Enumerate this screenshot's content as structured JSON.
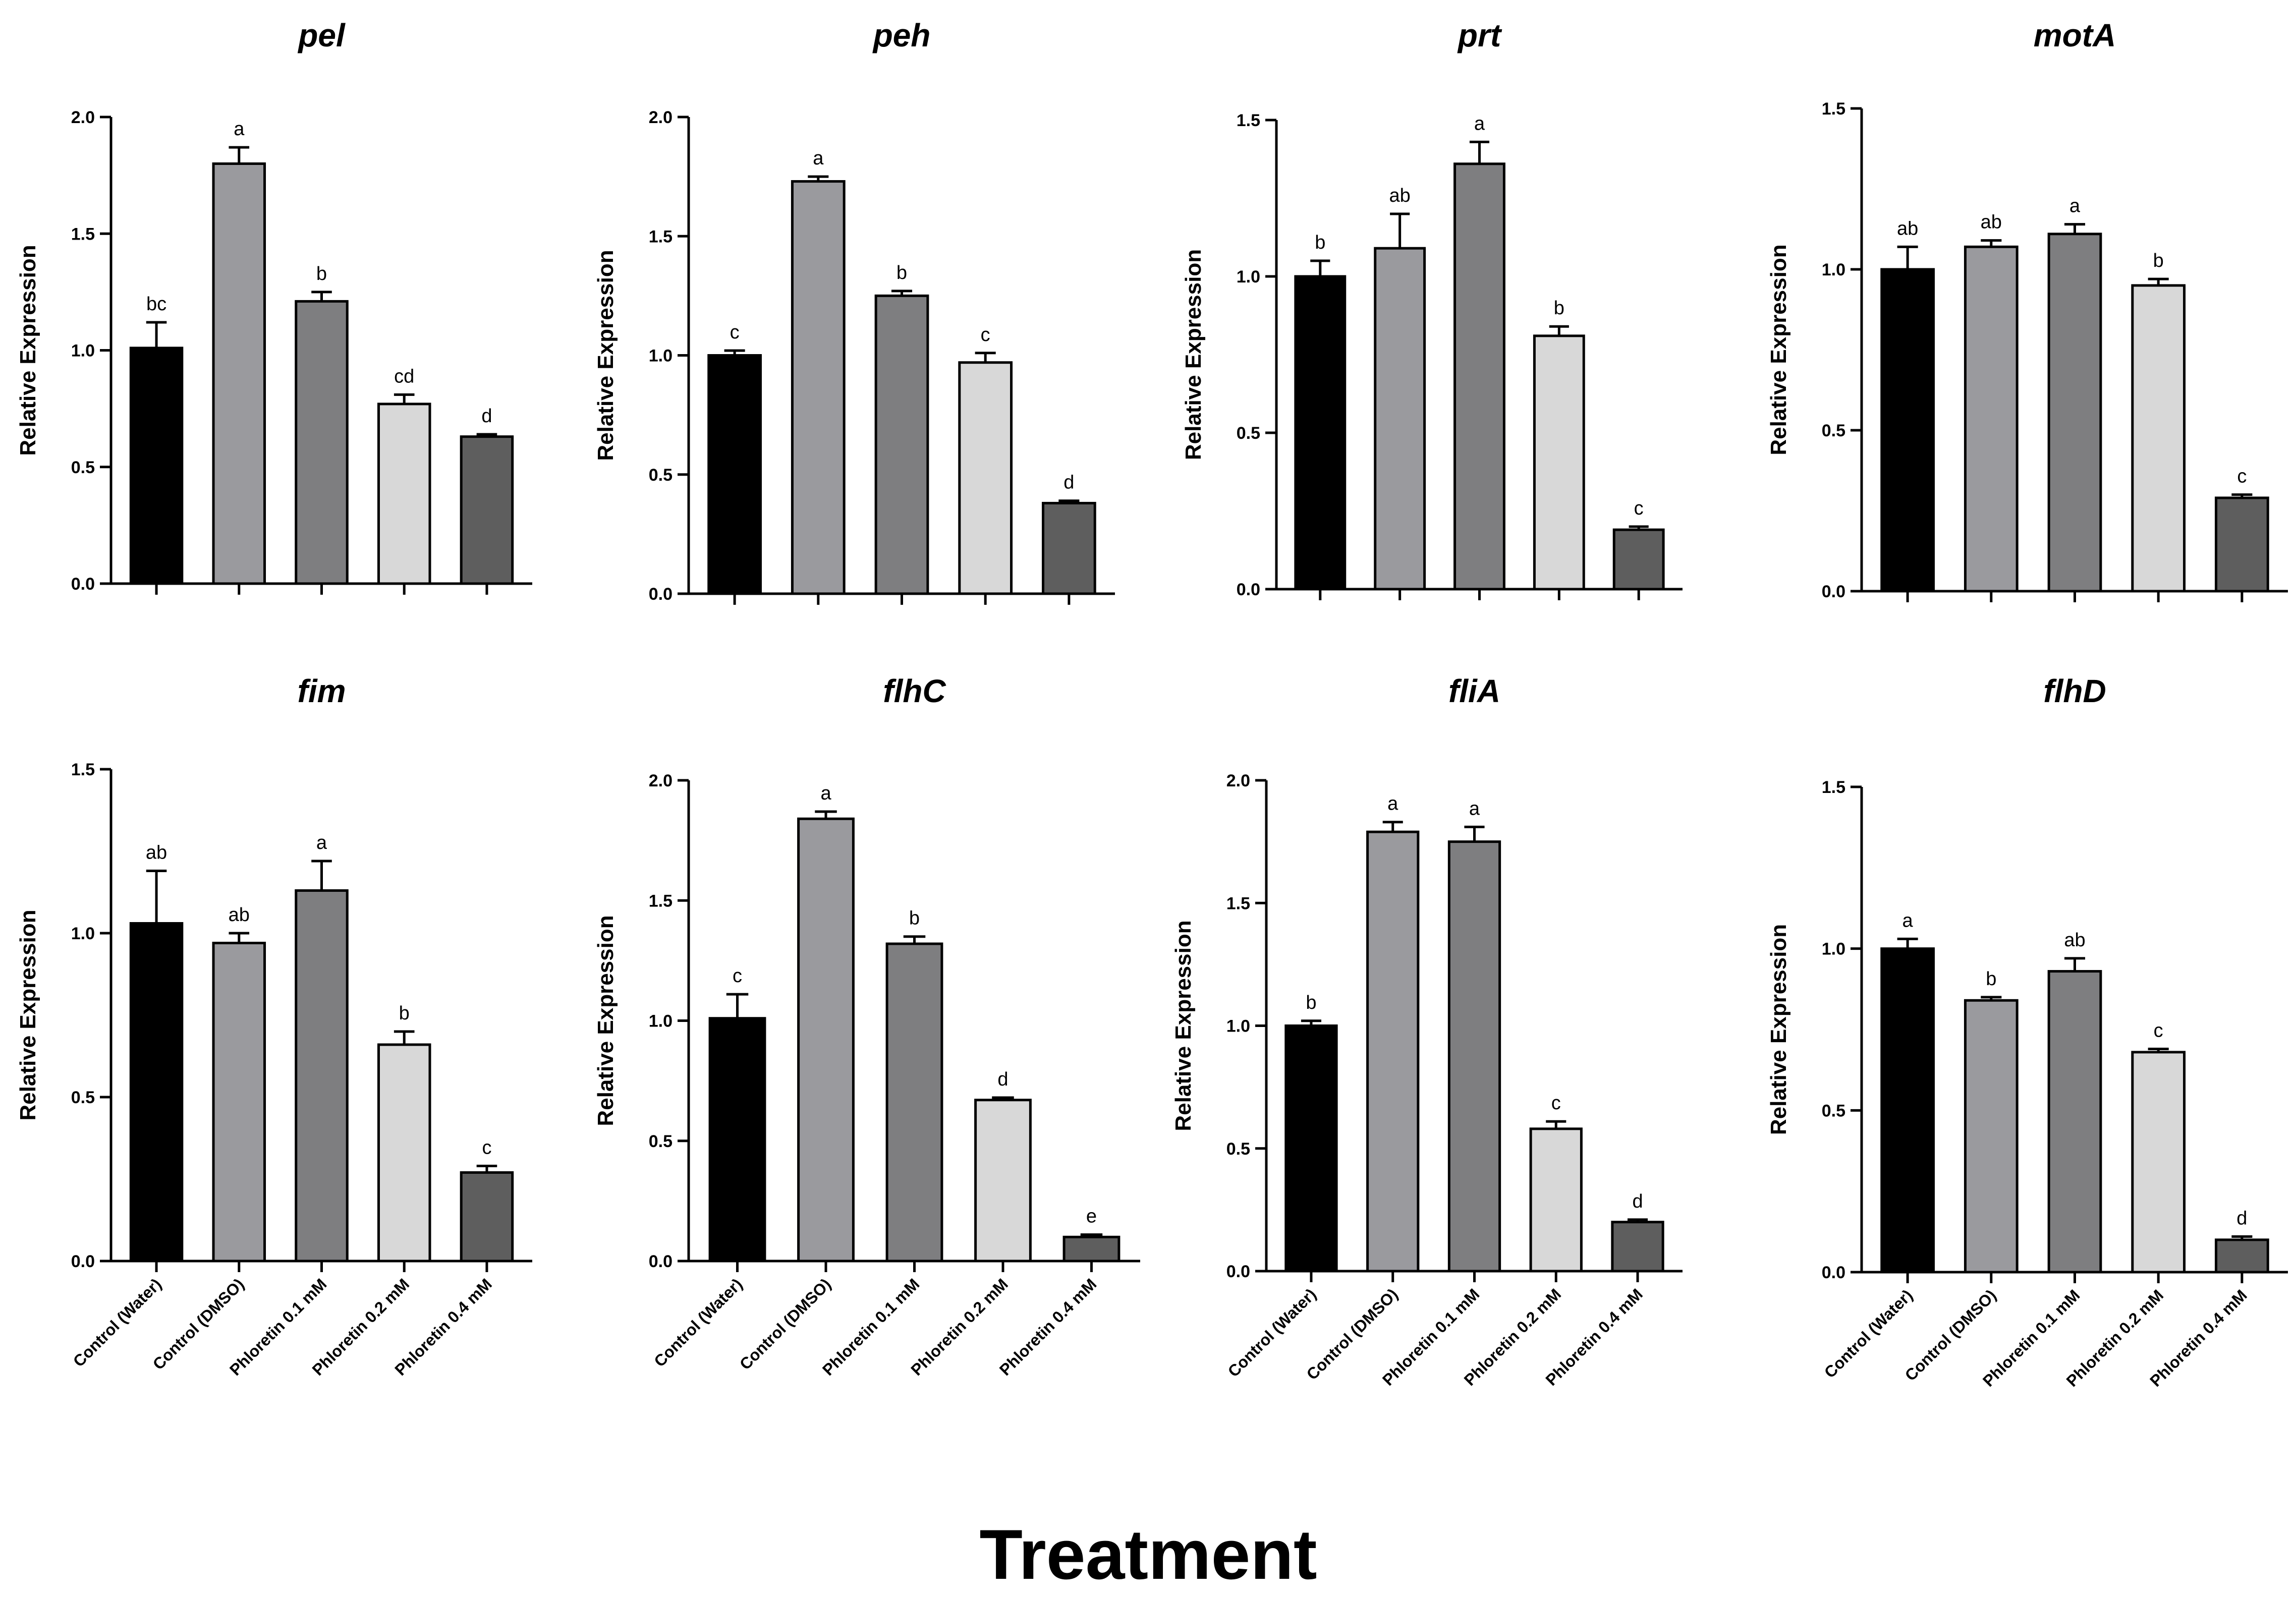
{
  "figure": {
    "x_title": "Treatment",
    "y_label": "Relative Expression",
    "categories": [
      "Control (Water)",
      "Control (DMSO)",
      "Phloretin 0.1 mM",
      "Phloretin 0.2 mM",
      "Phloretin 0.4 mM"
    ],
    "bar_colors": [
      "#000000",
      "#9a9a9e",
      "#7e7e80",
      "#d8d8d8",
      "#5e5e5e"
    ]
  },
  "chart_data": [
    {
      "type": "bar",
      "title": "pel",
      "ylabel": "Relative Expression",
      "ylim": [
        0,
        2.0
      ],
      "yticks": [
        "0.0",
        "0.5",
        "1.0",
        "1.5",
        "2.0"
      ],
      "values": [
        1.01,
        1.8,
        1.21,
        0.77,
        0.63
      ],
      "errors": [
        0.11,
        0.07,
        0.04,
        0.04,
        0.01
      ],
      "letters": [
        "bc",
        "a",
        "b",
        "cd",
        "d"
      ]
    },
    {
      "type": "bar",
      "title": "peh",
      "ylabel": "Relative Expression",
      "ylim": [
        0,
        2.0
      ],
      "yticks": [
        "0.0",
        "0.5",
        "1.0",
        "1.5",
        "2.0"
      ],
      "values": [
        1.0,
        1.73,
        1.25,
        0.97,
        0.38
      ],
      "errors": [
        0.02,
        0.02,
        0.02,
        0.04,
        0.01
      ],
      "letters": [
        "c",
        "a",
        "b",
        "c",
        "d"
      ]
    },
    {
      "type": "bar",
      "title": "prt",
      "ylabel": "Relative Expression",
      "ylim": [
        0,
        1.5
      ],
      "yticks": [
        "0.0",
        "0.5",
        "1.0",
        "1.5"
      ],
      "values": [
        1.0,
        1.09,
        1.36,
        0.81,
        0.19
      ],
      "errors": [
        0.05,
        0.11,
        0.07,
        0.03,
        0.01
      ],
      "letters": [
        "b",
        "ab",
        "a",
        "b",
        "c"
      ]
    },
    {
      "type": "bar",
      "title": "motA",
      "ylabel": "Relative Expression",
      "ylim": [
        0,
        1.5
      ],
      "yticks": [
        "0.0",
        "0.5",
        "1.0",
        "1.5"
      ],
      "values": [
        1.0,
        1.07,
        1.11,
        0.95,
        0.29
      ],
      "errors": [
        0.07,
        0.02,
        0.03,
        0.02,
        0.01
      ],
      "letters": [
        "ab",
        "ab",
        "a",
        "b",
        "c"
      ]
    },
    {
      "type": "bar",
      "title": "fim",
      "ylabel": "Relative Expression",
      "ylim": [
        0,
        1.5
      ],
      "yticks": [
        "0.0",
        "0.5",
        "1.0",
        "1.5"
      ],
      "values": [
        1.03,
        0.97,
        1.13,
        0.66,
        0.27
      ],
      "errors": [
        0.16,
        0.03,
        0.09,
        0.04,
        0.02
      ],
      "letters": [
        "ab",
        "ab",
        "a",
        "b",
        "c"
      ]
    },
    {
      "type": "bar",
      "title": "flhC",
      "ylabel": "Relative Expression",
      "ylim": [
        0,
        2.0
      ],
      "yticks": [
        "0.0",
        "0.5",
        "1.0",
        "1.5",
        "2.0"
      ],
      "values": [
        1.01,
        1.84,
        1.32,
        0.67,
        0.1
      ],
      "errors": [
        0.1,
        0.03,
        0.03,
        0.01,
        0.01
      ],
      "letters": [
        "c",
        "a",
        "b",
        "d",
        "e"
      ]
    },
    {
      "type": "bar",
      "title": "fliA",
      "ylabel": "Relative Expression",
      "ylim": [
        0,
        2.0
      ],
      "yticks": [
        "0.0",
        "0.5",
        "1.0",
        "1.5",
        "2.0"
      ],
      "values": [
        1.0,
        1.79,
        1.75,
        0.58,
        0.2
      ],
      "errors": [
        0.02,
        0.04,
        0.06,
        0.03,
        0.01
      ],
      "letters": [
        "b",
        "a",
        "a",
        "c",
        "d"
      ]
    },
    {
      "type": "bar",
      "title": "flhD",
      "ylabel": "Relative Expression",
      "ylim": [
        0,
        1.5
      ],
      "yticks": [
        "0.0",
        "0.5",
        "1.0",
        "1.5"
      ],
      "values": [
        1.0,
        0.84,
        0.93,
        0.68,
        0.1
      ],
      "errors": [
        0.03,
        0.01,
        0.04,
        0.01,
        0.01
      ],
      "letters": [
        "a",
        "b",
        "ab",
        "c",
        "d"
      ]
    }
  ]
}
